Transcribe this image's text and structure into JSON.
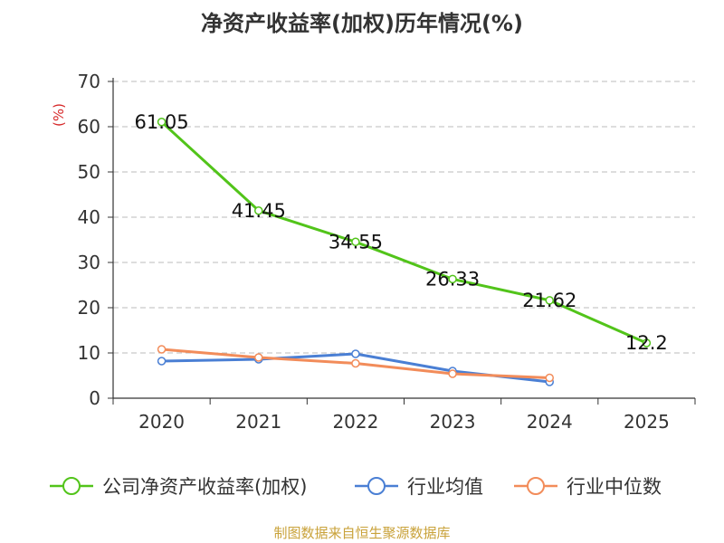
{
  "chart_data": {
    "type": "line",
    "title": "净资产收益率(加权)历年情况(%)",
    "ylabel": "(%)",
    "xlabel": "",
    "ylim": [
      0,
      70
    ],
    "yticks": [
      0,
      10,
      20,
      30,
      40,
      50,
      60,
      70
    ],
    "categories": [
      "2020",
      "2021",
      "2022",
      "2023",
      "2024",
      "2025"
    ],
    "grid": "horizontal dashed",
    "legend_position": "bottom",
    "series": [
      {
        "name": "公司净资产收益率(加权)",
        "color": "#52c41a",
        "values": [
          61.05,
          41.45,
          34.55,
          26.33,
          21.62,
          12.2
        ],
        "labels": [
          "61.05",
          "41.45",
          "34.55",
          "26.33",
          "21.62",
          "12.2"
        ],
        "show_labels": true
      },
      {
        "name": "行业均值",
        "color": "#4a7fd4",
        "values": [
          8.2,
          8.6,
          9.8,
          6.0,
          3.6,
          null
        ],
        "show_labels": false
      },
      {
        "name": "行业中位数",
        "color": "#f28c5a",
        "values": [
          10.8,
          9.0,
          7.7,
          5.4,
          4.5,
          null
        ],
        "show_labels": false
      }
    ]
  },
  "footer": {
    "source": "制图数据来自恒生聚源数据库"
  }
}
